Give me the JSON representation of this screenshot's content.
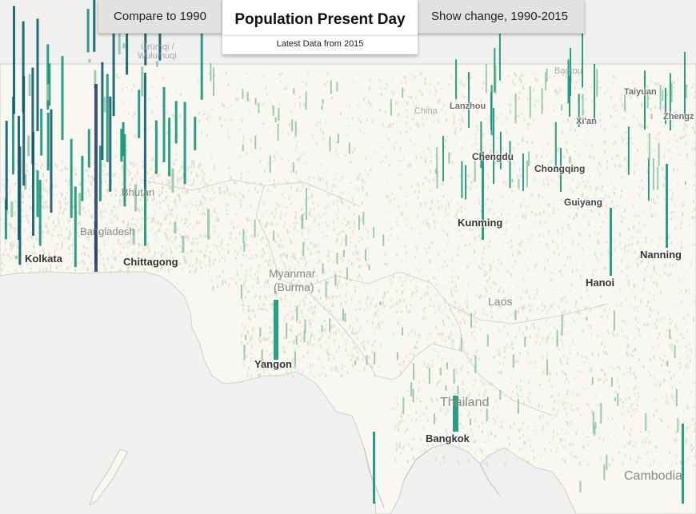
{
  "tabs": {
    "compare": "Compare to 1990",
    "title": "Population Present Day",
    "subtitle": "Latest Data from 2015",
    "change": "Show change, 1990-2015"
  },
  "colors": {
    "land": "#f8f7f2",
    "water": "#f0f0ef",
    "speckle": "#d9d6bf",
    "bar_low": "#8fc7a6",
    "bar_mid": "#12967a",
    "bar_high": "#0b5c6b",
    "bar_top": "#2e3f66"
  },
  "labels": {
    "urumqi": "Ürümqi /",
    "wulumuqi": "Wulumuqi",
    "baotou": "Baotou",
    "china": "China",
    "lanzhou": "Lanzhou",
    "taiyuan": "Taiyuan",
    "xian": "Xi'an",
    "zhengzhou": "Zhengz",
    "chengdu": "Chengdu",
    "chongqing": "Chongqing",
    "guiyang": "Guiyang",
    "kunming": "Kunming",
    "nanning": "Nanning",
    "hanoi": "Hanoi",
    "laos": "Laos",
    "bhutan": "Bhutan",
    "bangladesh": "Bangladesh",
    "kolkata": "Kolkata",
    "chittagong": "Chittagong",
    "myanmar": "Myanmar",
    "burma": "(Burma)",
    "yangon": "Yangon",
    "thailand": "Thailand",
    "bangkok": "Bangkok",
    "cambodia": "Cambodia"
  }
}
